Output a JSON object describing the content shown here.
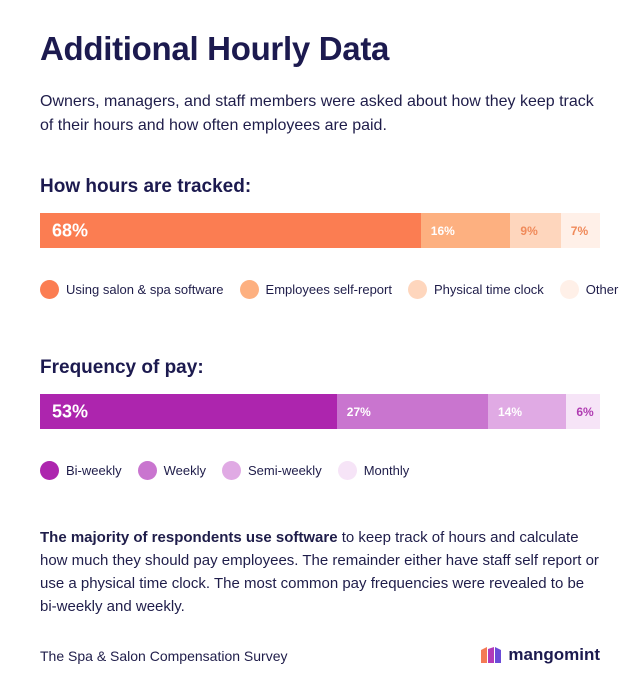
{
  "title": "Additional Hourly Data",
  "intro": "Owners, managers, and staff members were asked about how they keep track of their hours and how often employees are paid.",
  "chart_data": [
    {
      "type": "bar",
      "orientation": "horizontal-stacked",
      "title": "How hours are tracked:",
      "unit": "%",
      "segments": [
        {
          "name": "Using salon & spa software",
          "value": 68,
          "label": "68%",
          "color": "#fb7d52",
          "label_color": "#ffffff"
        },
        {
          "name": "Employees self-report",
          "value": 16,
          "label": "16%",
          "color": "#fdb080",
          "label_color": "#ffffff"
        },
        {
          "name": "Physical time clock",
          "value": 9,
          "label": "9%",
          "color": "#fed6bd",
          "label_color": "#f08a5a"
        },
        {
          "name": "Other",
          "value": 7,
          "label": "7%",
          "color": "#fff0e8",
          "label_color": "#f08a5a"
        }
      ]
    },
    {
      "type": "bar",
      "orientation": "horizontal-stacked",
      "title": "Frequency of pay:",
      "unit": "%",
      "segments": [
        {
          "name": "Bi-weekly",
          "value": 53,
          "label": "53%",
          "color": "#ad25ae",
          "label_color": "#ffffff"
        },
        {
          "name": "Weekly",
          "value": 27,
          "label": "27%",
          "color": "#c975cf",
          "label_color": "#ffffff"
        },
        {
          "name": "Semi-weekly",
          "value": 14,
          "label": "14%",
          "color": "#e0aae4",
          "label_color": "#ffffff"
        },
        {
          "name": "Monthly",
          "value": 6,
          "label": "6%",
          "color": "#f6e4f7",
          "label_color": "#b03cb2"
        }
      ]
    }
  ],
  "summary": {
    "bold": "The majority of respondents use software",
    "rest": " to keep track of hours and calculate how much they should pay employees. The remainder either have staff self report or use a physical time clock. The most common pay frequencies were revealed to be bi-weekly and weekly."
  },
  "footer": {
    "source": "The Spa & Salon Compensation Survey",
    "brand": "mangomint"
  }
}
